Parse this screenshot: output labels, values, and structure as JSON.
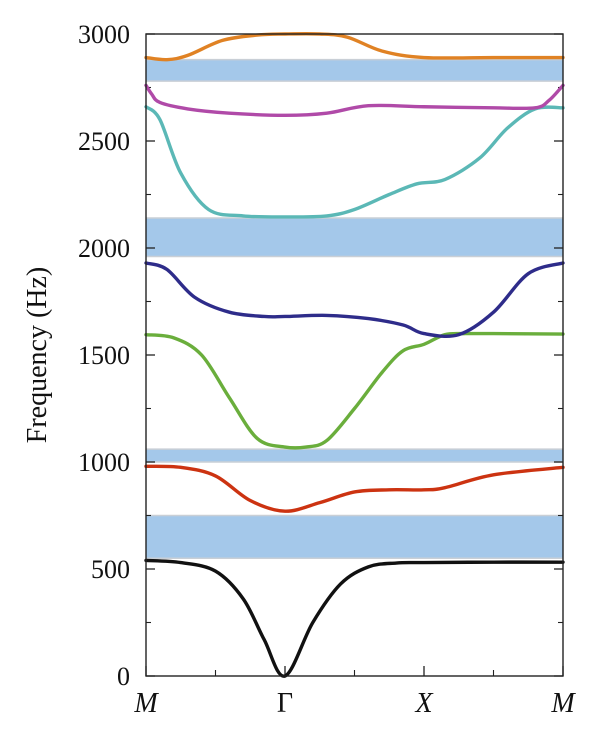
{
  "chart_data": {
    "type": "line",
    "title": "",
    "xlabel": "",
    "ylabel": "Frequency (Hz)",
    "ylim": [
      0,
      3000
    ],
    "yticks": [
      0,
      500,
      1000,
      1500,
      2000,
      2500,
      3000
    ],
    "ytick_labels": [
      "0",
      "500",
      "1000",
      "1500",
      "2000",
      "2500",
      "3000"
    ],
    "xlim": [
      0,
      3
    ],
    "xticks": [
      0,
      1,
      2,
      3
    ],
    "xtick_labels": [
      "M",
      "Γ",
      "X",
      "M"
    ],
    "xtick_italic": [
      true,
      false,
      true,
      true
    ],
    "x_minor_ticks": [
      0.5,
      1.5,
      2.5
    ],
    "band_gaps": [
      {
        "from": 550,
        "to": 750
      },
      {
        "from": 1000,
        "to": 1060
      },
      {
        "from": 1960,
        "to": 2140
      },
      {
        "from": 2780,
        "to": 2880
      }
    ],
    "gap_color": "#a4c8ea",
    "series": [
      {
        "color": "#111111",
        "x": [
          0,
          0.25,
          0.5,
          0.7,
          0.85,
          1.0,
          1.2,
          1.4,
          1.6,
          1.8,
          2.0,
          2.5,
          3.0
        ],
        "values": [
          540,
          530,
          490,
          360,
          170,
          0,
          250,
          430,
          510,
          528,
          530,
          532,
          532
        ]
      },
      {
        "color": "#cc3311",
        "x": [
          0,
          0.25,
          0.5,
          0.75,
          1.0,
          1.25,
          1.5,
          1.75,
          2.0,
          2.15,
          2.5,
          3.0
        ],
        "values": [
          980,
          975,
          935,
          820,
          770,
          810,
          860,
          870,
          870,
          880,
          940,
          975
        ]
      },
      {
        "color": "#6aae3c",
        "x": [
          0,
          0.2,
          0.4,
          0.6,
          0.8,
          1.0,
          1.15,
          1.3,
          1.5,
          1.7,
          1.85,
          2.0,
          2.15,
          2.3,
          2.5,
          3.0
        ],
        "values": [
          1595,
          1580,
          1500,
          1300,
          1110,
          1070,
          1070,
          1100,
          1250,
          1420,
          1520,
          1550,
          1595,
          1600,
          1600,
          1598
        ]
      },
      {
        "color": "#2e2c8a",
        "x": [
          0,
          0.15,
          0.35,
          0.6,
          0.85,
          1.0,
          1.3,
          1.6,
          1.85,
          2.0,
          2.25,
          2.5,
          2.75,
          3.0
        ],
        "values": [
          1930,
          1900,
          1770,
          1700,
          1680,
          1680,
          1685,
          1670,
          1640,
          1600,
          1595,
          1700,
          1880,
          1930
        ]
      },
      {
        "color": "#5bb8b6",
        "x": [
          0,
          0.1,
          0.25,
          0.45,
          0.7,
          1.0,
          1.3,
          1.5,
          1.75,
          1.95,
          2.15,
          2.4,
          2.6,
          2.8,
          3.0
        ],
        "values": [
          2660,
          2600,
          2350,
          2180,
          2150,
          2145,
          2150,
          2180,
          2250,
          2300,
          2320,
          2420,
          2560,
          2650,
          2655
        ]
      },
      {
        "color": "#b04aa8",
        "x": [
          0,
          0.04,
          0.1,
          0.3,
          0.6,
          1.0,
          1.3,
          1.6,
          2.0,
          2.5,
          2.8,
          2.9,
          3.0
        ],
        "values": [
          2760,
          2720,
          2680,
          2650,
          2630,
          2620,
          2630,
          2665,
          2660,
          2655,
          2655,
          2690,
          2760
        ]
      },
      {
        "color": "#e08224",
        "x": [
          0,
          0.15,
          0.3,
          0.55,
          0.8,
          1.0,
          1.25,
          1.45,
          1.7,
          2.0,
          2.5,
          3.0
        ],
        "values": [
          2890,
          2880,
          2900,
          2970,
          2995,
          3000,
          3000,
          2985,
          2920,
          2890,
          2890,
          2890
        ]
      }
    ]
  }
}
